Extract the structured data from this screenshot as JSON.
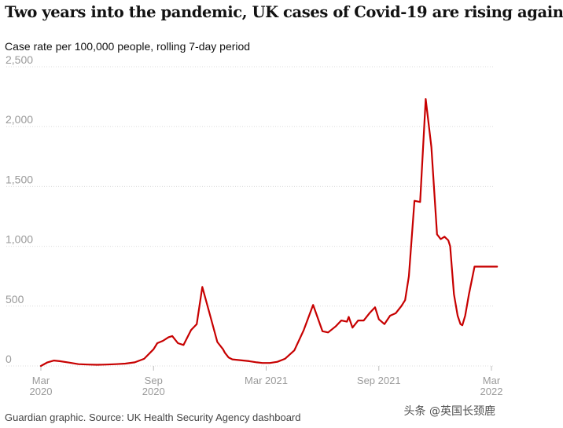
{
  "title": "Two years into the pandemic, UK cases of Covid-19 are rising again",
  "subtitle": "Case rate per 100,000 people, rolling 7-day period",
  "source": "Guardian graphic. Source: UK Health Security Agency dashboard",
  "watermark": "头条 @英国长颈鹿",
  "colors": {
    "line": "#c70000",
    "grid": "#dcdcdc",
    "tick": "#9a9a9a"
  },
  "chart_data": {
    "type": "line",
    "title": "Two years into the pandemic, UK cases of Covid-19 are rising again",
    "ylabel": "Case rate per 100,000 people, rolling 7-day period",
    "xlabel": "",
    "ylim": [
      0,
      2500
    ],
    "yticks": [
      0,
      500,
      1000,
      1500,
      2000,
      2500
    ],
    "ytick_labels": [
      "0",
      "500",
      "1,000",
      "1,500",
      "2,000",
      "2,500"
    ],
    "xlim": [
      0,
      24.3
    ],
    "xticks": [
      {
        "x": 0,
        "line1": "Mar",
        "line2": "2020"
      },
      {
        "x": 6,
        "line1": "Sep",
        "line2": "2020"
      },
      {
        "x": 12,
        "line1": "Mar 2021",
        "line2": ""
      },
      {
        "x": 18,
        "line1": "Sep 2021",
        "line2": ""
      },
      {
        "x": 24,
        "line1": "Mar",
        "line2": "2022"
      }
    ],
    "grid": true,
    "series": [
      {
        "name": "",
        "x": [
          0,
          0.35,
          0.7,
          1.0,
          1.5,
          2.0,
          2.5,
          3.0,
          3.5,
          4.0,
          4.5,
          5.0,
          5.5,
          6.0,
          6.2,
          6.5,
          6.8,
          7.0,
          7.3,
          7.6,
          8.0,
          8.3,
          8.6,
          9.0,
          9.4,
          9.7,
          9.8,
          10.0,
          10.2,
          10.5,
          10.8,
          11.1,
          11.5,
          11.8,
          12.2,
          12.6,
          13.0,
          13.5,
          14.0,
          14.5,
          15.0,
          15.3,
          15.7,
          16.0,
          16.3,
          16.4,
          16.6,
          16.9,
          17.2,
          17.5,
          17.8,
          18.0,
          18.3,
          18.6,
          18.9,
          19.2,
          19.4,
          19.6,
          19.9,
          20.2,
          20.5,
          20.8,
          21.1,
          21.3,
          21.5,
          21.7,
          21.8,
          21.85,
          21.9,
          22.0,
          22.2,
          22.35,
          22.45,
          22.6,
          22.8,
          23.1,
          23.3,
          23.6,
          23.8,
          24.1,
          24.3
        ],
        "y": [
          0,
          30,
          45,
          40,
          28,
          15,
          12,
          10,
          12,
          15,
          20,
          30,
          60,
          140,
          190,
          210,
          240,
          250,
          190,
          175,
          300,
          350,
          660,
          430,
          200,
          140,
          110,
          70,
          55,
          50,
          45,
          40,
          30,
          25,
          25,
          35,
          60,
          130,
          300,
          510,
          290,
          280,
          330,
          380,
          370,
          410,
          320,
          380,
          380,
          440,
          490,
          390,
          350,
          420,
          440,
          500,
          550,
          750,
          1380,
          1370,
          2230,
          1830,
          1100,
          1060,
          1080,
          1050,
          1000,
          900,
          800,
          600,
          420,
          350,
          340,
          420,
          600,
          830,
          830,
          830,
          830,
          830,
          830
        ]
      }
    ]
  }
}
